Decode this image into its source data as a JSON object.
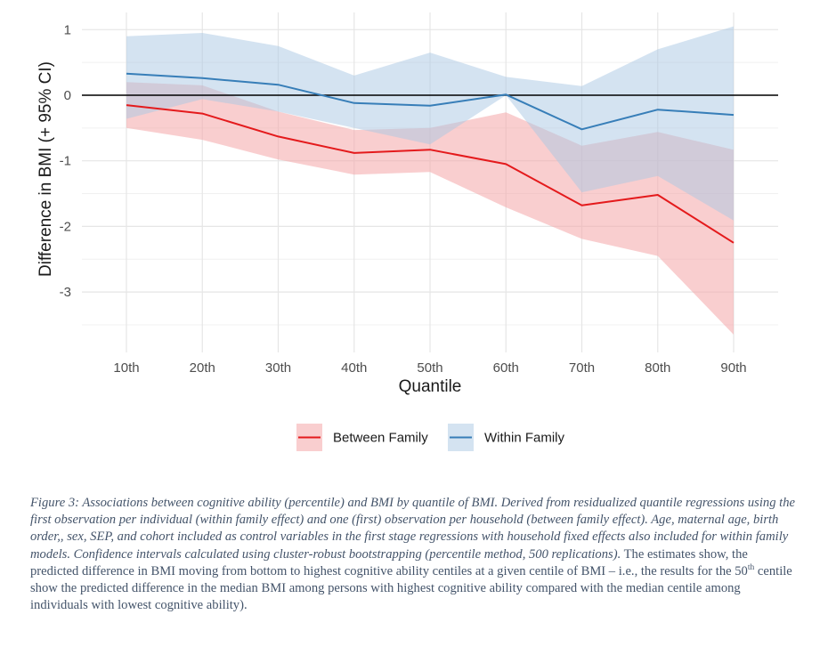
{
  "chart_data": {
    "type": "line",
    "xlabel": "Quantile",
    "ylabel": "Difference in BMI (+ 95% CI)",
    "categories": [
      "10th",
      "20th",
      "30th",
      "40th",
      "50th",
      "60th",
      "70th",
      "80th",
      "90th"
    ],
    "yticks": [
      "1",
      "0",
      "-1",
      "-2",
      "-3"
    ],
    "ytick_values": [
      1,
      0,
      -1,
      -2,
      -3
    ],
    "ylim": [
      -3.65,
      1.1
    ],
    "grid": true,
    "reference_line": 0,
    "legend_position": "bottom",
    "series": [
      {
        "name": "Between Family",
        "color": "#e41a1c",
        "fill": "#f4a6a8",
        "values": [
          -0.15,
          -0.28,
          -0.63,
          -0.88,
          -0.83,
          -1.05,
          -1.68,
          -1.52,
          -2.25
        ],
        "lower": [
          -0.5,
          -0.68,
          -0.98,
          -1.21,
          -1.17,
          -1.71,
          -2.19,
          -2.45,
          -3.65
        ],
        "upper": [
          0.2,
          0.15,
          -0.25,
          -0.53,
          -0.5,
          -0.26,
          -0.77,
          -0.56,
          -0.83
        ]
      },
      {
        "name": "Within Family",
        "color": "#377eb8",
        "fill": "#a9c7e3",
        "values": [
          0.33,
          0.26,
          0.16,
          -0.12,
          -0.16,
          0.01,
          -0.52,
          -0.22,
          -0.3
        ],
        "lower": [
          -0.36,
          -0.06,
          -0.25,
          -0.5,
          -0.75,
          0.0,
          -1.48,
          -1.23,
          -1.91
        ],
        "upper": [
          0.9,
          0.95,
          0.75,
          0.3,
          0.65,
          0.28,
          0.14,
          0.7,
          1.05
        ]
      }
    ]
  },
  "caption": {
    "italic": "Figure 3: Associations between cognitive ability (percentile) and BMI by quantile of BMI. Derived from residualized quantile regressions using the first observation per individual (within family effect) and one (first) observation per household (between family effect). Age, maternal age, birth order,, sex, SEP, and cohort included as control variables in the first stage regressions with household fixed effects also included for within family models. Confidence intervals calculated using cluster-robust bootstrapping (percentile method, 500 replications).",
    "part1": " The estimates show, the predicted difference in BMI moving from bottom to highest cognitive ability centiles at a given centile of BMI – i.e., the results for the 50",
    "sup": "th",
    "part2": " centile show the predicted difference in the median BMI among persons with highest cognitive ability compared with the median centile among individuals with lowest cognitive ability)."
  }
}
